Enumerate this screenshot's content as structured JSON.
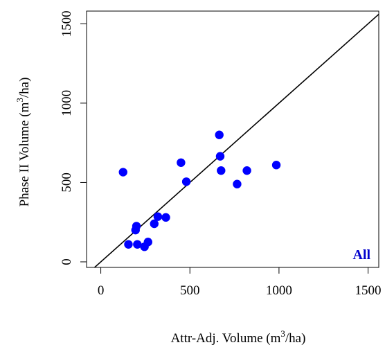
{
  "chart_data": {
    "type": "scatter",
    "xlabel_main": "Attr-Adj. Volume (m",
    "xlabel_sup": "3",
    "xlabel_end": "/ha)",
    "ylabel_main": "Phase II Volume (m",
    "ylabel_sup": "3",
    "ylabel_end": "/ha)",
    "xlim": [
      -80,
      1560
    ],
    "ylim": [
      -35,
      1580
    ],
    "x_ticks": [
      0,
      500,
      1000,
      1500
    ],
    "y_ticks": [
      0,
      500,
      1000,
      1500
    ],
    "x_tick_labels": [
      "0",
      "500",
      "1000",
      "1500"
    ],
    "y_tick_labels": [
      "0",
      "500",
      "1000",
      "1500"
    ],
    "panel_label": "All",
    "point_color": "#0000ff",
    "label_color": "#0000cd",
    "reference_line": {
      "from": [
        -35,
        -35
      ],
      "to": [
        1560,
        1560
      ]
    },
    "grid": false,
    "points": [
      {
        "x": 125,
        "y": 565
      },
      {
        "x": 155,
        "y": 110
      },
      {
        "x": 195,
        "y": 200
      },
      {
        "x": 200,
        "y": 225
      },
      {
        "x": 205,
        "y": 110
      },
      {
        "x": 245,
        "y": 95
      },
      {
        "x": 265,
        "y": 125
      },
      {
        "x": 300,
        "y": 240
      },
      {
        "x": 320,
        "y": 285
      },
      {
        "x": 365,
        "y": 280
      },
      {
        "x": 450,
        "y": 625
      },
      {
        "x": 480,
        "y": 505
      },
      {
        "x": 665,
        "y": 800
      },
      {
        "x": 670,
        "y": 665
      },
      {
        "x": 675,
        "y": 575
      },
      {
        "x": 765,
        "y": 490
      },
      {
        "x": 820,
        "y": 575
      },
      {
        "x": 985,
        "y": 610
      }
    ]
  }
}
